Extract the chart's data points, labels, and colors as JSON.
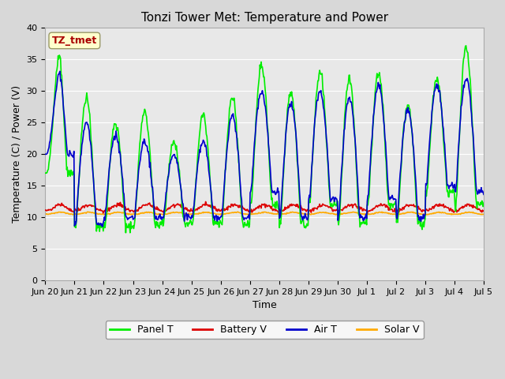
{
  "title": "Tonzi Tower Met: Temperature and Power",
  "xlabel": "Time",
  "ylabel": "Temperature (C) / Power (V)",
  "ylim": [
    0,
    40
  ],
  "yticks": [
    0,
    5,
    10,
    15,
    20,
    25,
    30,
    35,
    40
  ],
  "xtick_labels": [
    "Jun 20",
    "Jun 21",
    "Jun 22",
    "Jun 23",
    "Jun 24",
    "Jun 25",
    "Jun 26",
    "Jun 27",
    "Jun 28",
    "Jun 29",
    "Jun 30",
    "Jul 1",
    "Jul 2",
    "Jul 3",
    "Jul 4",
    "Jul 5"
  ],
  "legend_labels": [
    "Panel T",
    "Battery V",
    "Air T",
    "Solar V"
  ],
  "legend_colors": [
    "#00ee00",
    "#dd0000",
    "#0000cc",
    "#ffaa00"
  ],
  "annotation_text": "TZ_tmet",
  "annotation_color": "#aa0000",
  "annotation_bg": "#ffffcc",
  "fig_facecolor": "#d8d8d8",
  "plot_facecolor": "#e8e8e8",
  "title_fontsize": 11,
  "axis_fontsize": 9,
  "tick_fontsize": 8,
  "panel_T_color": "#00ee00",
  "battery_V_color": "#dd0000",
  "air_T_color": "#0000cc",
  "solar_V_color": "#ffaa00",
  "line_width": 1.2
}
